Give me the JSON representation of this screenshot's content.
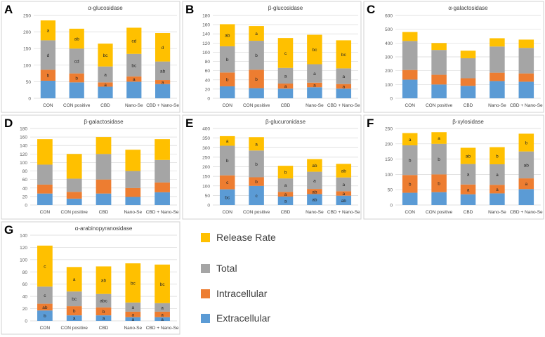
{
  "colors": {
    "extracellular": "#5B9BD5",
    "intracellular": "#ED7D31",
    "total": "#A5A5A5",
    "release": "#FFC000"
  },
  "legend": {
    "items": [
      {
        "key": "release",
        "label": "Release Rate"
      },
      {
        "key": "total",
        "label": "Total"
      },
      {
        "key": "intracellular",
        "label": "Intracellular"
      },
      {
        "key": "extracellular",
        "label": "Extracellular"
      }
    ]
  },
  "chart_data": [
    {
      "type": "bar",
      "stacked": true,
      "panel": "A",
      "title": "α-glucosidase",
      "categories": [
        "CON",
        "CON positive",
        "CBD",
        "Nano-Se",
        "CBD + Nano-Se"
      ],
      "ylim": [
        0,
        250
      ],
      "yticks": [
        0,
        50,
        100,
        150,
        200,
        250
      ],
      "series": [
        {
          "name": "Extracellular",
          "key": "extracellular",
          "values": [
            53,
            48,
            35,
            50,
            43
          ],
          "labels": [
            "",
            "",
            "",
            "",
            ""
          ]
        },
        {
          "name": "Intracellular",
          "key": "intracellular",
          "values": [
            33,
            27,
            13,
            16,
            12
          ],
          "labels": [
            "b",
            "b",
            "a",
            "a",
            "a"
          ]
        },
        {
          "name": "Total",
          "key": "total",
          "values": [
            89,
            75,
            48,
            68,
            56
          ],
          "labels": [
            "d",
            "cd",
            "a",
            "bc",
            "ab"
          ]
        },
        {
          "name": "Release Rate",
          "key": "release",
          "values": [
            60,
            60,
            69,
            79,
            86
          ],
          "labels": [
            "a",
            "ab",
            "bc",
            "cd",
            "d"
          ]
        }
      ]
    },
    {
      "type": "bar",
      "stacked": true,
      "panel": "B",
      "title": "β-glucosidase",
      "categories": [
        "CON",
        "CON positive",
        "CBD",
        "Nano-Se",
        "CBD + Nano-Se"
      ],
      "ylim": [
        0,
        180
      ],
      "yticks": [
        0,
        20,
        40,
        60,
        80,
        100,
        120,
        140,
        160,
        180
      ],
      "series": [
        {
          "name": "Extracellular",
          "key": "extracellular",
          "values": [
            26,
            22,
            21,
            24,
            21
          ],
          "labels": [
            "",
            "",
            "",
            "",
            ""
          ]
        },
        {
          "name": "Intracellular",
          "key": "intracellular",
          "values": [
            30,
            40,
            11,
            10,
            10
          ],
          "labels": [
            "b",
            "b",
            "a",
            "a",
            "a"
          ]
        },
        {
          "name": "Total",
          "key": "total",
          "values": [
            57,
            63,
            34,
            40,
            34
          ],
          "labels": [
            "b",
            "b",
            "a",
            "a",
            "a"
          ]
        },
        {
          "name": "Release Rate",
          "key": "release",
          "values": [
            48,
            32,
            65,
            64,
            61
          ],
          "labels": [
            "ab",
            "a",
            "c",
            "bc",
            "bc"
          ]
        }
      ]
    },
    {
      "type": "bar",
      "stacked": true,
      "panel": "C",
      "title": "α-galactosidase",
      "categories": [
        "CON",
        "CON positive",
        "CBD",
        "Nano-Se",
        "CBD + Nano-Se"
      ],
      "ylim": [
        0,
        600
      ],
      "yticks": [
        0,
        100,
        200,
        300,
        400,
        500,
        600
      ],
      "series": [
        {
          "name": "Extracellular",
          "key": "extracellular",
          "values": [
            135,
            100,
            90,
            125,
            120
          ],
          "labels": [
            "",
            "",
            "",
            "",
            ""
          ]
        },
        {
          "name": "Intracellular",
          "key": "intracellular",
          "values": [
            70,
            70,
            55,
            60,
            60
          ],
          "labels": [
            "",
            "",
            "",
            "",
            ""
          ]
        },
        {
          "name": "Total",
          "key": "total",
          "values": [
            210,
            180,
            145,
            190,
            185
          ],
          "labels": [
            "",
            "",
            "",
            "",
            ""
          ]
        },
        {
          "name": "Release Rate",
          "key": "release",
          "values": [
            65,
            50,
            55,
            60,
            60
          ],
          "labels": [
            "",
            "",
            "",
            "",
            ""
          ]
        }
      ]
    },
    {
      "type": "bar",
      "stacked": true,
      "panel": "D",
      "title": "β-galactosidase",
      "categories": [
        "CON",
        "CON positive",
        "CBD",
        "Nano-Se",
        "CBD + Nano-Se"
      ],
      "ylim": [
        0,
        180
      ],
      "yticks": [
        0,
        20,
        40,
        60,
        80,
        100,
        120,
        140,
        160,
        180
      ],
      "series": [
        {
          "name": "Extracellular",
          "key": "extracellular",
          "values": [
            27,
            15,
            27,
            19,
            30
          ],
          "labels": [
            "",
            "",
            "",
            "",
            ""
          ]
        },
        {
          "name": "Intracellular",
          "key": "intracellular",
          "values": [
            21,
            16,
            33,
            21,
            23
          ],
          "labels": [
            "",
            "",
            "",
            "",
            ""
          ]
        },
        {
          "name": "Total",
          "key": "total",
          "values": [
            47,
            31,
            60,
            40,
            53
          ],
          "labels": [
            "",
            "",
            "",
            "",
            ""
          ]
        },
        {
          "name": "Release Rate",
          "key": "release",
          "values": [
            60,
            58,
            40,
            50,
            49
          ],
          "labels": [
            "",
            "",
            "",
            "",
            ""
          ]
        }
      ]
    },
    {
      "type": "bar",
      "stacked": true,
      "panel": "E",
      "title": "β-glucuronidase",
      "categories": [
        "CON",
        "CON positive",
        "CBD",
        "Nano-Se",
        "CBD + Nano-Se"
      ],
      "ylim": [
        0,
        400
      ],
      "yticks": [
        0,
        50,
        100,
        150,
        200,
        250,
        300,
        350,
        400
      ],
      "series": [
        {
          "name": "Extracellular",
          "key": "extracellular",
          "values": [
            82,
            100,
            44,
            57,
            49
          ],
          "labels": [
            "bc",
            "c",
            "a",
            "ab",
            "ab"
          ]
        },
        {
          "name": "Intracellular",
          "key": "intracellular",
          "values": [
            73,
            45,
            25,
            27,
            23
          ],
          "labels": [
            "c",
            "b",
            "a",
            "ab",
            "a"
          ]
        },
        {
          "name": "Total",
          "key": "total",
          "values": [
            155,
            140,
            70,
            90,
            72
          ],
          "labels": [
            "b",
            "b",
            "a",
            "a",
            "a"
          ]
        },
        {
          "name": "Release Rate",
          "key": "release",
          "values": [
            50,
            70,
            66,
            66,
            71
          ],
          "labels": [
            "a",
            "a",
            "b",
            "ab",
            "ab"
          ]
        }
      ]
    },
    {
      "type": "bar",
      "stacked": true,
      "panel": "F",
      "title": "β-xylosidase",
      "categories": [
        "CON",
        "CON positive",
        "CBD",
        "Nano-Se",
        "CBD + Nano-Se"
      ],
      "ylim": [
        0,
        250
      ],
      "yticks": [
        0,
        50,
        100,
        150,
        200,
        250
      ],
      "series": [
        {
          "name": "Extracellular",
          "key": "extracellular",
          "values": [
            40,
            42,
            35,
            38,
            52
          ],
          "labels": [
            "",
            "",
            "",
            "",
            ""
          ]
        },
        {
          "name": "Intracellular",
          "key": "intracellular",
          "values": [
            58,
            58,
            32,
            28,
            35
          ],
          "labels": [
            "b",
            "b",
            "a",
            "a",
            "a"
          ]
        },
        {
          "name": "Total",
          "key": "total",
          "values": [
            97,
            100,
            67,
            67,
            88
          ],
          "labels": [
            "b",
            "b",
            "a",
            "a",
            "ab"
          ]
        },
        {
          "name": "Release Rate",
          "key": "release",
          "values": [
            40,
            38,
            53,
            56,
            58
          ],
          "labels": [
            "a",
            "a",
            "ab",
            "b",
            "b"
          ]
        }
      ]
    },
    {
      "type": "bar",
      "stacked": true,
      "panel": "G",
      "title": "α-arabinopyranosidase",
      "categories": [
        "CON",
        "CON positive",
        "CBD",
        "Nano-Se",
        "CBD + Nano-Se"
      ],
      "ylim": [
        0,
        140
      ],
      "yticks": [
        0,
        20,
        40,
        60,
        80,
        100,
        120,
        140
      ],
      "series": [
        {
          "name": "Extracellular",
          "key": "extracellular",
          "values": [
            17,
            9,
            9,
            6,
            6
          ],
          "labels": [
            "b",
            "a",
            "a",
            "a",
            "a"
          ]
        },
        {
          "name": "Intracellular",
          "key": "intracellular",
          "values": [
            11,
            15,
            13,
            9,
            9
          ],
          "labels": [
            "ab",
            "b",
            "b",
            "a",
            "a"
          ]
        },
        {
          "name": "Total",
          "key": "total",
          "values": [
            28,
            24,
            22,
            15,
            14
          ],
          "labels": [
            "c",
            "bc",
            "abc",
            "a",
            "a"
          ]
        },
        {
          "name": "Release Rate",
          "key": "release",
          "values": [
            67,
            40,
            45,
            64,
            63
          ],
          "labels": [
            "c",
            "a",
            "ab",
            "bc",
            "bc"
          ]
        }
      ]
    }
  ]
}
